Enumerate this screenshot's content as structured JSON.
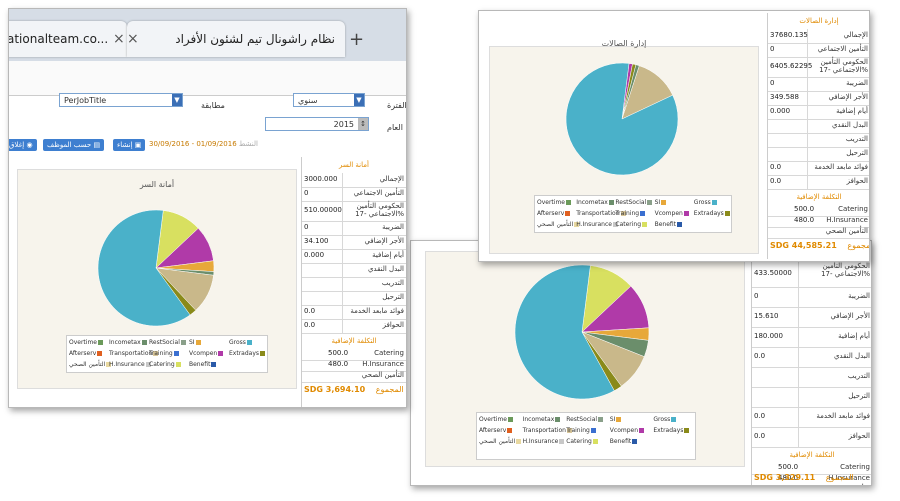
{
  "browser": {
    "tab1_text": "ationalteam.co...",
    "tab2_text": "نظام راشونال تيم لشئون الأفراد",
    "tab_close": "×",
    "new_tab": "+"
  },
  "form": {
    "period_label": "الفترة",
    "period_value": "سنوي",
    "stage_label": "مطابقة",
    "stage_value": "PerJobTitle",
    "year_label": "العام",
    "year_value": "2015",
    "period_range": "30/09/2016 - 01/09/2016",
    "range_suffix": "النشط",
    "buttons": [
      "إغلاق",
      "حسب الموظف",
      "إنشاء"
    ]
  },
  "windows": [
    {
      "id": "front",
      "chart_title": "أمانة السر",
      "side_title": "أمانة السر",
      "rows": [
        {
          "value": "3000.000",
          "label": "الإجمالي"
        },
        {
          "value": "0",
          "label": "التأمين الاجتماعي"
        },
        {
          "value": "510.00000",
          "label": "الحكومي التأمين الاجتماعي -17%"
        },
        {
          "value": "0",
          "label": "الضريبة"
        },
        {
          "value": "34.100",
          "label": "الأجر الإضافي"
        },
        {
          "value": "0.000",
          "label": "أيام إضافية"
        },
        {
          "value": "",
          "label": "البدل النقدي"
        },
        {
          "value": "",
          "label": "التدريب"
        },
        {
          "value": "",
          "label": "الترحيل"
        },
        {
          "value": "0.0",
          "label": "فوائد مابعد الخدمة"
        },
        {
          "value": "0.0",
          "label": "الحوافز"
        }
      ],
      "extra_title": "التكلفة الإضافية",
      "extra_rows": [
        {
          "value": "500.0",
          "label": "Catering"
        },
        {
          "value": "480.0",
          "label": "H.Insurance"
        },
        {
          "value": "",
          "label": "التأمين الصحي"
        }
      ],
      "total": "SDG 3,694.10",
      "total_label": "المجموع"
    },
    {
      "id": "top-right",
      "chart_title": "إدارة الصالات",
      "side_title": "إدارة الصالات",
      "rows": [
        {
          "value": "37680.135",
          "label": "الإجمالي"
        },
        {
          "value": "0",
          "label": "التأمين الاجتماعي"
        },
        {
          "value": "6405.62295",
          "label": "الحكومي التأمين الاجتماعي -17%"
        },
        {
          "value": "0",
          "label": "الضريبة"
        },
        {
          "value": "349.588",
          "label": "الأجر الإضافي"
        },
        {
          "value": "0.000",
          "label": "أيام إضافية"
        },
        {
          "value": "",
          "label": "البدل النقدي"
        },
        {
          "value": "",
          "label": "التدريب"
        },
        {
          "value": "",
          "label": "الترحيل"
        },
        {
          "value": "0.0",
          "label": "فوائد مابعد الخدمة"
        },
        {
          "value": "0.0",
          "label": "الحوافز"
        }
      ],
      "extra_title": "التكلفة الإضافية",
      "extra_rows": [
        {
          "value": "500.0",
          "label": "Catering"
        },
        {
          "value": "480.0",
          "label": "H.Insurance"
        },
        {
          "value": "",
          "label": "التأمين الصحي"
        }
      ],
      "total": "SDG 44,585.21",
      "total_label": "المجموع"
    },
    {
      "id": "bottom-right",
      "rows": [
        {
          "value": "433.50000",
          "label": "الحكومي التأمين الاجتماعي -17%"
        },
        {
          "value": "0",
          "label": "الضريبة"
        },
        {
          "value": "15.610",
          "label": "الأجر الإضافي"
        },
        {
          "value": "180.000",
          "label": "أيام إضافية"
        },
        {
          "value": "0.0",
          "label": "البدل النقدي"
        },
        {
          "value": "",
          "label": "التدريب"
        },
        {
          "value": "",
          "label": "الترحيل"
        },
        {
          "value": "0.0",
          "label": "فوائد مابعد الخدمة"
        },
        {
          "value": "0.0",
          "label": "الحوافز"
        }
      ],
      "extra_title": "التكلفة الإضافية",
      "extra_rows": [
        {
          "value": "500.0",
          "label": "Catering"
        },
        {
          "value": "480.0",
          "label": "H.Insurance"
        },
        {
          "value": "",
          "label": "التأمين الصحي"
        }
      ],
      "total": "SDG 3,329.11",
      "total_label": "المجموع"
    }
  ],
  "legend": {
    "row1": [
      {
        "name": "Overtime",
        "color": "#6b9a5a"
      },
      {
        "name": "Incometax",
        "color": "#6b8e6b"
      },
      {
        "name": "RestSocial",
        "color": "#8aa08a"
      },
      {
        "name": "SI",
        "color": "#e7a83a"
      },
      {
        "name": "Gross",
        "color": "#4ab1c9"
      }
    ],
    "row2": [
      {
        "name": "Afterserv",
        "color": "#e06020"
      },
      {
        "name": "Transportation",
        "color": "#d9c79a"
      },
      {
        "name": "Training",
        "color": "#3a6fd0"
      },
      {
        "name": "Vcompen",
        "color": "#b03aa8"
      },
      {
        "name": "Extradays",
        "color": "#8a8a1a"
      }
    ],
    "row3": [
      {
        "name": "التأمين الصحي",
        "color": "#e8d8a0"
      },
      {
        "name": "H.Insurance",
        "color": "#c8c8c8"
      },
      {
        "name": "Catering",
        "color": "#d8e060"
      },
      {
        "name": "Benefit",
        "color": "#2a5aa8"
      }
    ]
  },
  "chart_data": [
    {
      "type": "pie",
      "title": "أمانة السر",
      "labels": [
        "Gross",
        "Catering",
        "Vcompen",
        "SI",
        "Incometax",
        "Transportation",
        "Overtime"
      ],
      "values": [
        62,
        11,
        10,
        3,
        1,
        11,
        2
      ],
      "colors": [
        "#4ab1c9",
        "#d8e060",
        "#b03aa8",
        "#e7a83a",
        "#6b8e6b",
        "#c9b88a",
        "#8a8a1a"
      ]
    },
    {
      "type": "pie",
      "title": "إدارة الصالات",
      "labels": [
        "Gross",
        "Vcompen",
        "Extradays",
        "Incometax",
        "Transportation"
      ],
      "values": [
        84,
        1,
        1,
        1,
        13
      ],
      "colors": [
        "#4ab1c9",
        "#b03aa8",
        "#8a8a1a",
        "#6b8e6b",
        "#c9b88a"
      ]
    },
    {
      "type": "pie",
      "title": "",
      "labels": [
        "Gross",
        "Catering",
        "Vcompen",
        "SI",
        "Incometax",
        "Transportation",
        "Overtime"
      ],
      "values": [
        60,
        11,
        11,
        3,
        4,
        9,
        2
      ],
      "colors": [
        "#4ab1c9",
        "#d8e060",
        "#b03aa8",
        "#e7a83a",
        "#6b8e6b",
        "#c9b88a",
        "#8a8a1a"
      ]
    }
  ]
}
